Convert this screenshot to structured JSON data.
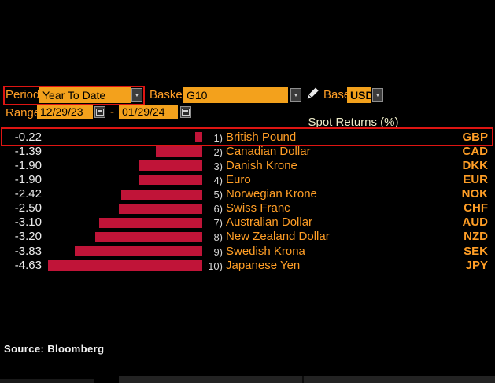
{
  "header": {
    "period_label": "Period",
    "period_value": "Year To Date",
    "basket_label": "Basket",
    "basket_value": "G10",
    "base_label": "Base",
    "base_value": "USD",
    "range_label": "Range",
    "range_start": "12/29/23",
    "range_separator": "-",
    "range_end": "01/29/24"
  },
  "icons": {
    "dropdown_arrow": "▼"
  },
  "chart_data": {
    "type": "bar",
    "orientation": "horizontal",
    "title": "Spot Returns (%)",
    "value_unit": "percent",
    "xlim": [
      -5,
      0
    ],
    "grid": false,
    "highlighted_row": "British Pound",
    "rows": [
      {
        "rank": "1)",
        "name": "British Pound",
        "code": "GBP",
        "value": -0.22,
        "value_label": "-0.22"
      },
      {
        "rank": "2)",
        "name": "Canadian Dollar",
        "code": "CAD",
        "value": -1.39,
        "value_label": "-1.39"
      },
      {
        "rank": "3)",
        "name": "Danish Krone",
        "code": "DKK",
        "value": -1.9,
        "value_label": "-1.90"
      },
      {
        "rank": "4)",
        "name": "Euro",
        "code": "EUR",
        "value": -1.9,
        "value_label": "-1.90"
      },
      {
        "rank": "5)",
        "name": "Norwegian Krone",
        "code": "NOK",
        "value": -2.42,
        "value_label": "-2.42"
      },
      {
        "rank": "6)",
        "name": "Swiss Franc",
        "code": "CHF",
        "value": -2.5,
        "value_label": "-2.50"
      },
      {
        "rank": "7)",
        "name": "Australian Dollar",
        "code": "AUD",
        "value": -3.1,
        "value_label": "-3.10"
      },
      {
        "rank": "8)",
        "name": "New Zealand Dollar",
        "code": "NZD",
        "value": -3.2,
        "value_label": "-3.20"
      },
      {
        "rank": "9)",
        "name": "Swedish Krona",
        "code": "SEK",
        "value": -3.83,
        "value_label": "-3.83"
      },
      {
        "rank": "10)",
        "name": "Japanese Yen",
        "code": "JPY",
        "value": -4.63,
        "value_label": "-4.63"
      }
    ]
  },
  "footer": {
    "source": "Source: Bloomberg"
  },
  "colors": {
    "background": "#000000",
    "accent_orange_text": "#ff9e26",
    "field_orange_bg": "#f3a11c",
    "bar_red": "#c01438",
    "annotation_red": "#de1512",
    "title_cream": "#f0eecb",
    "value_white": "#ececec"
  }
}
